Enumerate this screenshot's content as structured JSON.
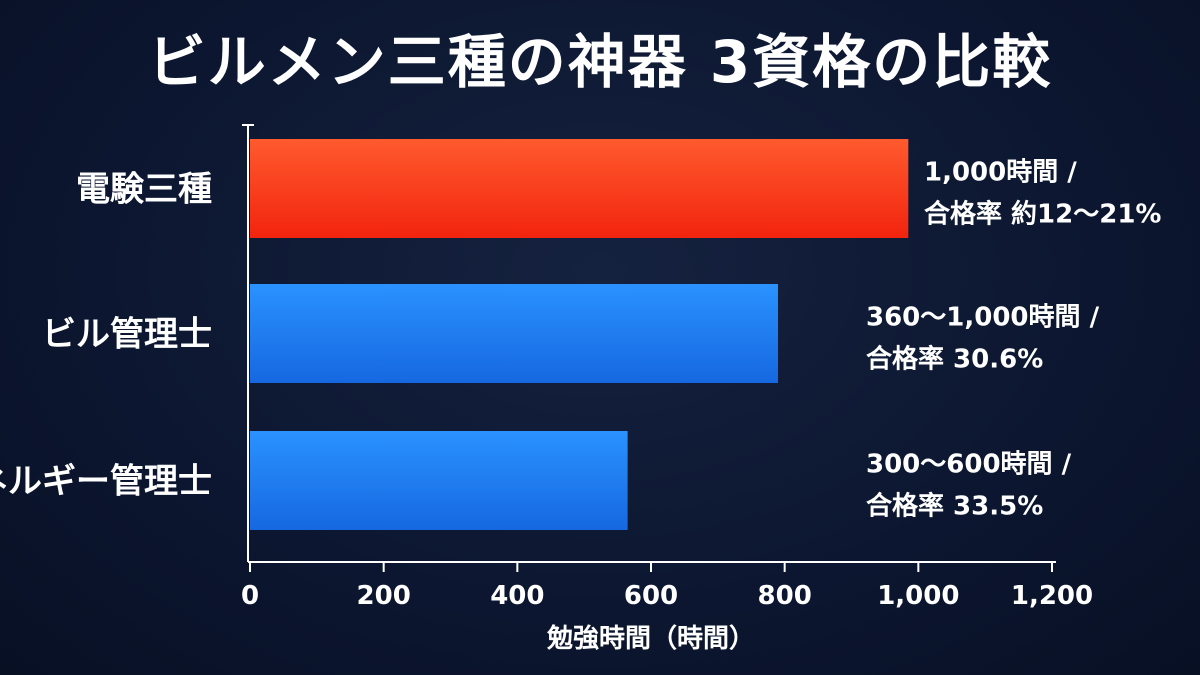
{
  "chart_data": {
    "type": "bar",
    "orientation": "horizontal",
    "title": "ビルメン三種の神器 3資格の比較",
    "categories": [
      "電験三種",
      "ビル管理士",
      "エネルギー管理士"
    ],
    "values": [
      985,
      790,
      565
    ],
    "bar_colors": [
      "#ff3a1c",
      "#1a7ef2",
      "#1a7ef2"
    ],
    "annotations": [
      [
        "1,000時間 /",
        "合格率 約12〜21%"
      ],
      [
        "360〜1,000時間 /",
        "合格率 30.6%"
      ],
      [
        "300〜600時間 /",
        "合格率 33.5%"
      ]
    ],
    "xlabel": "勉強時間（時間）",
    "ylabel": "",
    "xlim": [
      0,
      1200
    ],
    "xticks": [
      0,
      200,
      400,
      600,
      800,
      1000,
      1200
    ],
    "xtick_labels": [
      "0",
      "200",
      "400",
      "600",
      "800",
      "1,000",
      "1,200"
    ],
    "grid": false,
    "legend": "none"
  }
}
